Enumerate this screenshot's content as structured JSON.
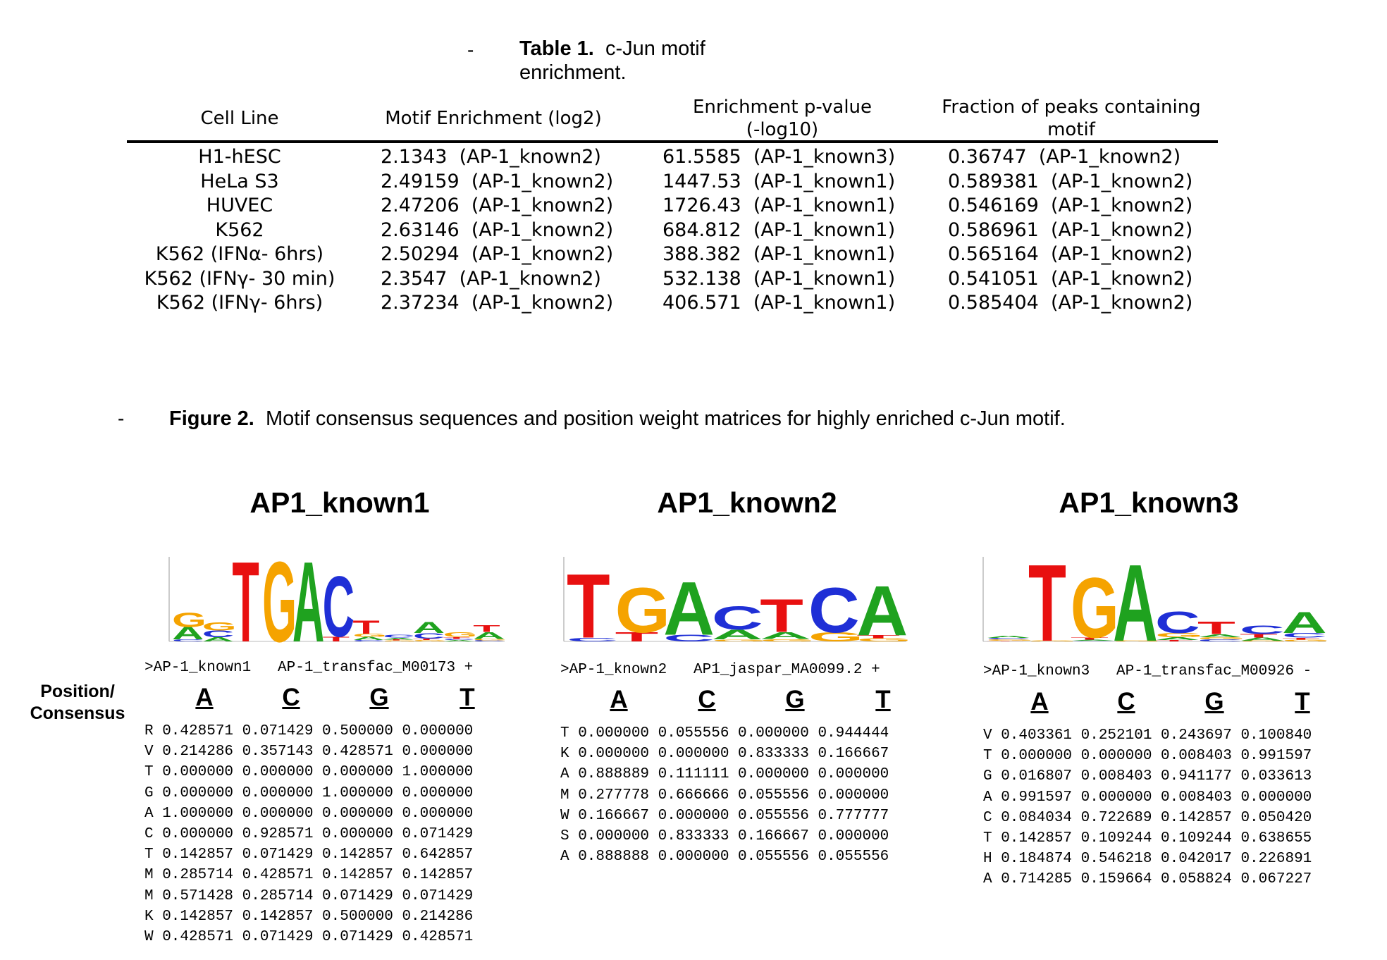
{
  "table": {
    "dash": "-",
    "caption_bold": "Table 1.",
    "caption_line1": "c-Jun motif",
    "caption_line2": "enrichment.",
    "headers": {
      "cell_line": "Cell Line",
      "motif_enrichment": "Motif Enrichment (log2)",
      "pvalue_line1": "Enrichment p-value",
      "pvalue_line2": "(-log10)",
      "fraction_line1": "Fraction of peaks containing",
      "fraction_line2": "motif"
    },
    "rows": [
      {
        "cell_line": "H1-hESC",
        "enrichment": "2.1343  (AP-1_known2)",
        "pvalue": "61.5585  (AP-1_known3)",
        "fraction": "0.36747  (AP-1_known2)"
      },
      {
        "cell_line": "HeLa S3",
        "enrichment": "2.49159  (AP-1_known2)",
        "pvalue": "1447.53  (AP-1_known1)",
        "fraction": "0.589381  (AP-1_known2)"
      },
      {
        "cell_line": "HUVEC",
        "enrichment": "2.47206  (AP-1_known2)",
        "pvalue": "1726.43  (AP-1_known1)",
        "fraction": "0.546169  (AP-1_known2)"
      },
      {
        "cell_line": "K562",
        "enrichment": "2.63146  (AP-1_known2)",
        "pvalue": "684.812  (AP-1_known1)",
        "fraction": "0.586961  (AP-1_known2)"
      },
      {
        "cell_line": "K562 (IFNα- 6hrs)",
        "enrichment": "2.50294  (AP-1_known2)",
        "pvalue": "388.382  (AP-1_known1)",
        "fraction": "0.565164  (AP-1_known2)"
      },
      {
        "cell_line": "K562 (IFNγ- 30 min)",
        "enrichment": "2.3547  (AP-1_known2)",
        "pvalue": "532.138  (AP-1_known1)",
        "fraction": "0.541051  (AP-1_known2)"
      },
      {
        "cell_line": "K562 (IFNγ- 6hrs)",
        "enrichment": "2.37234  (AP-1_known2)",
        "pvalue": "406.571  (AP-1_known1)",
        "fraction": "0.585404  (AP-1_known2)"
      }
    ]
  },
  "figure": {
    "dash": "-",
    "caption_bold": "Figure 2.",
    "caption_text": "Motif consensus sequences and position weight matrices for highly enriched c-Jun motif.",
    "position_label_line1": "Position/",
    "position_label_line2": "Consensus",
    "letters": [
      "A",
      "C",
      "G",
      "T"
    ],
    "colors": {
      "A": "#1fa21f",
      "C": "#1f2fd6",
      "G": "#f5a300",
      "T": "#e81010"
    },
    "motifs": [
      {
        "title": "AP1_known1",
        "header": ">AP-1_known1   AP-1_transfac_M00173 +",
        "rows": [
          "R 0.428571 0.071429 0.500000 0.000000",
          "V 0.214286 0.357143 0.428571 0.000000",
          "T 0.000000 0.000000 0.000000 1.000000",
          "G 0.000000 0.000000 1.000000 0.000000",
          "A 1.000000 0.000000 0.000000 0.000000",
          "C 0.000000 0.928571 0.000000 0.071429",
          "T 0.142857 0.071429 0.142857 0.642857",
          "M 0.285714 0.428571 0.142857 0.142857",
          "M 0.571428 0.285714 0.071429 0.071429",
          "K 0.142857 0.142857 0.500000 0.214286",
          "W 0.428571 0.071429 0.071429 0.428571"
        ]
      },
      {
        "title": "AP1_known2",
        "header": ">AP-1_known2   AP1_jaspar_MA0099.2 +",
        "rows": [
          "T 0.000000 0.055556 0.000000 0.944444",
          "K 0.000000 0.000000 0.833333 0.166667",
          "A 0.888889 0.111111 0.000000 0.000000",
          "M 0.277778 0.666666 0.055556 0.000000",
          "W 0.166667 0.000000 0.055556 0.777777",
          "S 0.000000 0.833333 0.166667 0.000000",
          "A 0.888888 0.000000 0.055556 0.055556"
        ]
      },
      {
        "title": "AP1_known3",
        "header": ">AP-1_known3   AP-1_transfac_M00926 -",
        "rows": [
          "V 0.403361 0.252101 0.243697 0.100840",
          "T 0.000000 0.000000 0.008403 0.991597",
          "G 0.016807 0.008403 0.941177 0.033613",
          "A 0.991597 0.000000 0.008403 0.000000",
          "C 0.084034 0.722689 0.142857 0.050420",
          "T 0.142857 0.109244 0.109244 0.638655",
          "H 0.184874 0.546218 0.042017 0.226891",
          "A 0.714285 0.159664 0.058824 0.067227"
        ]
      }
    ]
  }
}
